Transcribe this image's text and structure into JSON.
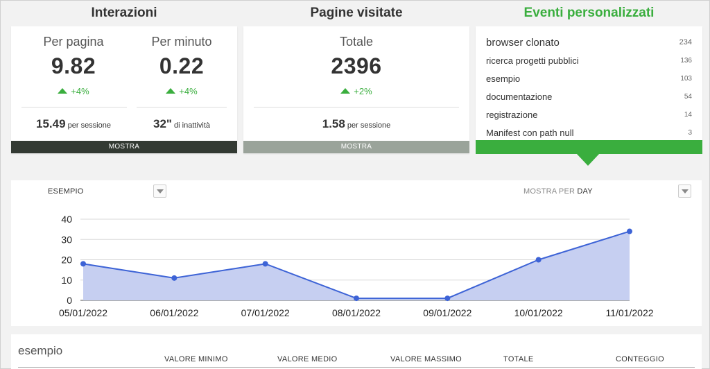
{
  "sections": {
    "interazioni_title": "Interazioni",
    "pagine_title": "Pagine visitate",
    "eventi_title": "Eventi personalizzati"
  },
  "interazioni": {
    "per_pagina": {
      "label": "Per pagina",
      "value": "9.82",
      "delta": "+4%"
    },
    "per_minuto": {
      "label": "Per minuto",
      "value": "0.22",
      "delta": "+4%"
    },
    "sessione_value": "15.49",
    "sessione_label": "per sessione",
    "inattivita_value": "32\"",
    "inattivita_label": "di inattività",
    "mostra_label": "MOSTRA"
  },
  "pagine": {
    "totale": {
      "label": "Totale",
      "value": "2396",
      "delta": "+2%"
    },
    "sessione_value": "1.58",
    "sessione_label": "per sessione",
    "mostra_label": "MOSTRA"
  },
  "eventi": [
    {
      "name": "browser clonato",
      "count": "234"
    },
    {
      "name": "ricerca progetti pubblici",
      "count": "136"
    },
    {
      "name": "esempio",
      "count": "103"
    },
    {
      "name": "documentazione",
      "count": "54"
    },
    {
      "name": "registrazione",
      "count": "14"
    },
    {
      "name": "Manifest con path null",
      "count": "3"
    }
  ],
  "chart_panel": {
    "selector_label": "ESEMPIO",
    "mostra_per_label": "MOSTRA PER",
    "mostra_per_value": "DAY"
  },
  "chart_data": {
    "type": "area",
    "x": [
      "05/01/2022",
      "06/01/2022",
      "07/01/2022",
      "08/01/2022",
      "09/01/2022",
      "10/01/2022",
      "11/01/2022"
    ],
    "values": [
      18,
      11,
      18,
      1,
      1,
      20,
      34
    ],
    "yticks": [
      "0",
      "10",
      "20",
      "30",
      "40"
    ],
    "ylim": [
      0,
      40
    ],
    "grid": true,
    "colors": {
      "line": "#3d63d6",
      "fill": "#c6cff1",
      "grid": "#d8d8d8"
    }
  },
  "table": {
    "title": "esempio",
    "headers": [
      "VALORE MINIMO",
      "VALORE MEDIO",
      "VALORE MASSIMO",
      "TOTALE",
      "CONTEGGIO"
    ]
  },
  "colors": {
    "accent_green": "#3aae3e",
    "dark_bar": "#333a33",
    "gray_bar": "#9aa39a"
  }
}
